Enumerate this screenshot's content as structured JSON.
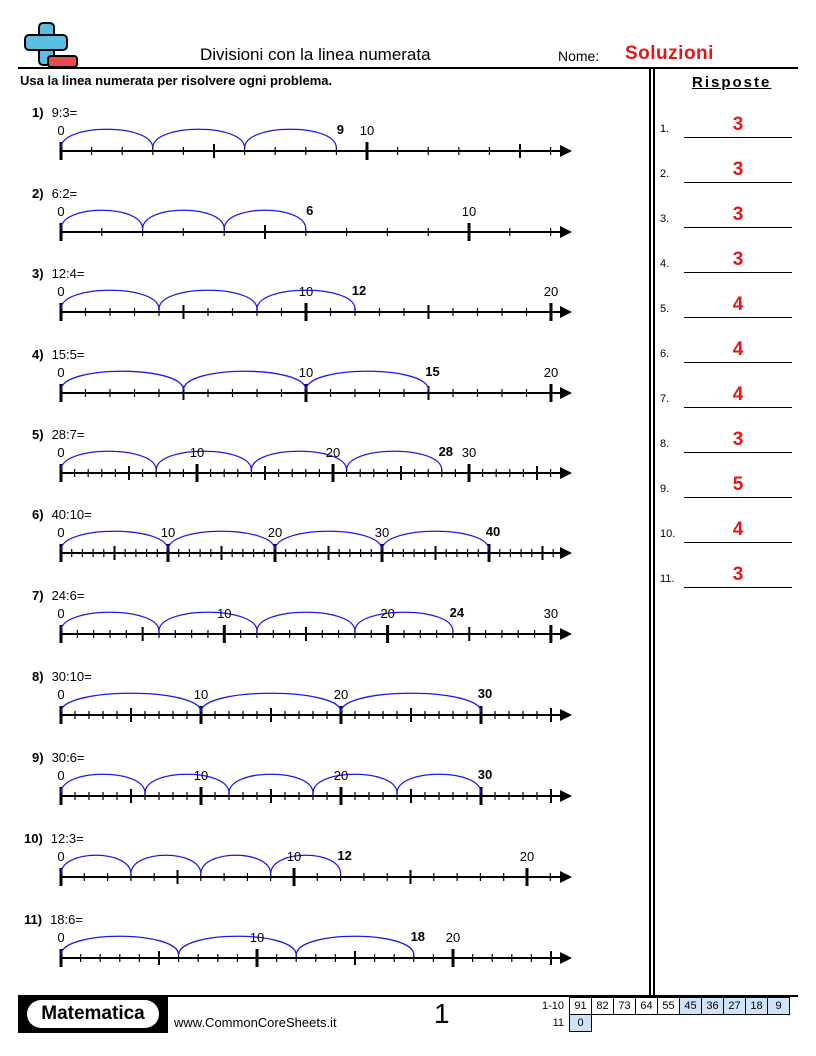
{
  "header": {
    "title": "Divisioni con la linea numerata",
    "name_label": "Nome:",
    "name_value": "Soluzioni",
    "instructions": "Usa la linea numerata per risolvere ogni problema."
  },
  "answers": {
    "title": "Risposte",
    "items": [
      {
        "num": "1.",
        "value": "3"
      },
      {
        "num": "2.",
        "value": "3"
      },
      {
        "num": "3.",
        "value": "3"
      },
      {
        "num": "4.",
        "value": "3"
      },
      {
        "num": "5.",
        "value": "4"
      },
      {
        "num": "6.",
        "value": "4"
      },
      {
        "num": "7.",
        "value": "4"
      },
      {
        "num": "8.",
        "value": "3"
      },
      {
        "num": "9.",
        "value": "5"
      },
      {
        "num": "10.",
        "value": "4"
      },
      {
        "num": "11.",
        "value": "3"
      }
    ]
  },
  "colors": {
    "arc": "#1a1ae6",
    "answer_red": "#e81515",
    "score_blue": "#cfe2f7"
  },
  "problems": [
    {
      "num": "1)",
      "expr": "9:3=",
      "dividend": 9,
      "divisor": 3,
      "scale": 30.6,
      "max": 16,
      "labels": [
        0,
        10
      ],
      "baseline": 151
    },
    {
      "num": "2)",
      "expr": "6:2=",
      "dividend": 6,
      "divisor": 2,
      "scale": 40.8,
      "max": 12,
      "labels": [
        0,
        10
      ],
      "baseline": 232
    },
    {
      "num": "3)",
      "expr": "12:4=",
      "dividend": 12,
      "divisor": 4,
      "scale": 24.5,
      "max": 20,
      "labels": [
        0,
        10,
        20
      ],
      "baseline": 312
    },
    {
      "num": "4)",
      "expr": "15:5=",
      "dividend": 15,
      "divisor": 5,
      "scale": 24.5,
      "max": 20,
      "labels": [
        0,
        10,
        20
      ],
      "baseline": 393
    },
    {
      "num": "5)",
      "expr": "28:7=",
      "dividend": 28,
      "divisor": 7,
      "scale": 13.6,
      "max": 37,
      "labels": [
        0,
        10,
        20,
        30
      ],
      "baseline": 473
    },
    {
      "num": "6)",
      "expr": "40:10=",
      "dividend": 40,
      "divisor": 10,
      "scale": 10.7,
      "max": 47,
      "labels": [
        0,
        10,
        20,
        30
      ],
      "baseline": 553
    },
    {
      "num": "7)",
      "expr": "24:6=",
      "dividend": 24,
      "divisor": 6,
      "scale": 16.33,
      "max": 30,
      "labels": [
        0,
        10,
        20,
        30
      ],
      "baseline": 634
    },
    {
      "num": "8)",
      "expr": "30:10=",
      "dividend": 30,
      "divisor": 10,
      "scale": 14.0,
      "max": 35,
      "labels": [
        0,
        10,
        20
      ],
      "baseline": 715
    },
    {
      "num": "9)",
      "expr": "30:6=",
      "dividend": 30,
      "divisor": 6,
      "scale": 14.0,
      "max": 35,
      "labels": [
        0,
        10,
        20
      ],
      "baseline": 796
    },
    {
      "num": "10)",
      "expr": "12:3=",
      "dividend": 12,
      "divisor": 3,
      "scale": 23.3,
      "max": 21,
      "labels": [
        0,
        10,
        20
      ],
      "baseline": 877
    },
    {
      "num": "11)",
      "expr": "18:6=",
      "dividend": 18,
      "divisor": 6,
      "scale": 19.6,
      "max": 25,
      "labels": [
        0,
        10,
        20
      ],
      "baseline": 958
    }
  ],
  "footer": {
    "brand": "Matematica",
    "url": "www.CommonCoreSheets.it",
    "page": "1",
    "score_rows": [
      {
        "label": "1-10",
        "cells": [
          {
            "v": "91",
            "blue": false
          },
          {
            "v": "82",
            "blue": false
          },
          {
            "v": "73",
            "blue": false
          },
          {
            "v": "64",
            "blue": false
          },
          {
            "v": "55",
            "blue": false
          },
          {
            "v": "45",
            "blue": true
          },
          {
            "v": "36",
            "blue": true
          },
          {
            "v": "27",
            "blue": true
          },
          {
            "v": "18",
            "blue": true
          },
          {
            "v": "9",
            "blue": true
          }
        ]
      },
      {
        "label": "11",
        "cells": [
          {
            "v": "0",
            "blue": true
          }
        ]
      }
    ]
  }
}
